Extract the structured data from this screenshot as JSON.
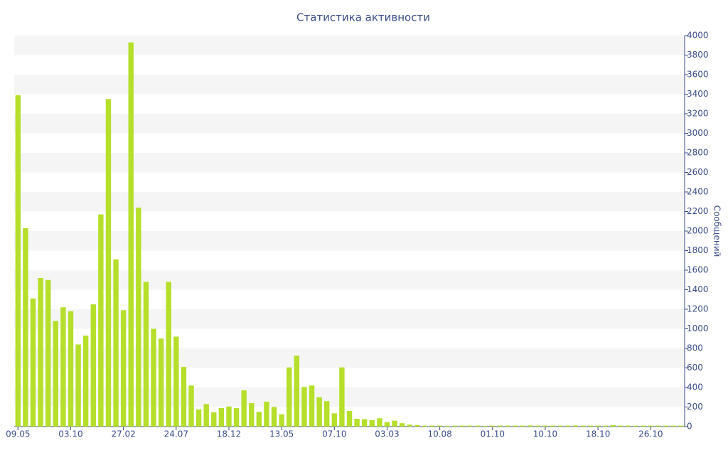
{
  "chart_data": {
    "type": "bar",
    "title": "Статистика активности",
    "y_label": "Сообщений",
    "y_axis_side": "right",
    "grid": "bands",
    "color": "#b5df2a",
    "categories": [
      "09.05",
      null,
      null,
      null,
      null,
      null,
      null,
      "03.10",
      null,
      null,
      null,
      null,
      null,
      null,
      "27.02",
      null,
      null,
      null,
      null,
      null,
      null,
      "24.07",
      null,
      null,
      null,
      null,
      null,
      null,
      "18.12",
      null,
      null,
      null,
      null,
      null,
      null,
      "13.05",
      null,
      null,
      null,
      null,
      null,
      null,
      "07.10",
      null,
      null,
      null,
      null,
      null,
      null,
      "03.03",
      null,
      null,
      null,
      null,
      null,
      null,
      "10.08",
      null,
      null,
      null,
      null,
      null,
      null,
      "01.10",
      null,
      null,
      null,
      null,
      null,
      null,
      "10.10",
      null,
      null,
      null,
      null,
      null,
      null,
      "18.10",
      null,
      null,
      null,
      null,
      null,
      null,
      "26.10",
      null,
      null,
      null,
      null
    ],
    "values": [
      3390,
      2030,
      1310,
      1520,
      1500,
      1080,
      1220,
      1180,
      840,
      930,
      1250,
      2170,
      3350,
      1710,
      1190,
      3930,
      2240,
      1480,
      1000,
      900,
      1480,
      920,
      610,
      420,
      175,
      230,
      145,
      190,
      205,
      190,
      370,
      240,
      150,
      255,
      200,
      125,
      605,
      725,
      405,
      420,
      300,
      260,
      135,
      605,
      160,
      80,
      75,
      65,
      85,
      45,
      60,
      35,
      20,
      15,
      10,
      10,
      10,
      8,
      10,
      10,
      10,
      10,
      8,
      10,
      10,
      10,
      10,
      10,
      12,
      10,
      10,
      10,
      10,
      10,
      12,
      10,
      10,
      10,
      10,
      15,
      10,
      10,
      10,
      10,
      10,
      10,
      10,
      10,
      10
    ],
    "ylim": [
      0,
      4000
    ],
    "yticks": [
      0,
      200,
      400,
      600,
      800,
      1000,
      1200,
      1400,
      1600,
      1800,
      2000,
      2200,
      2400,
      2600,
      2800,
      3000,
      3200,
      3400,
      3600,
      3800,
      4000
    ]
  }
}
